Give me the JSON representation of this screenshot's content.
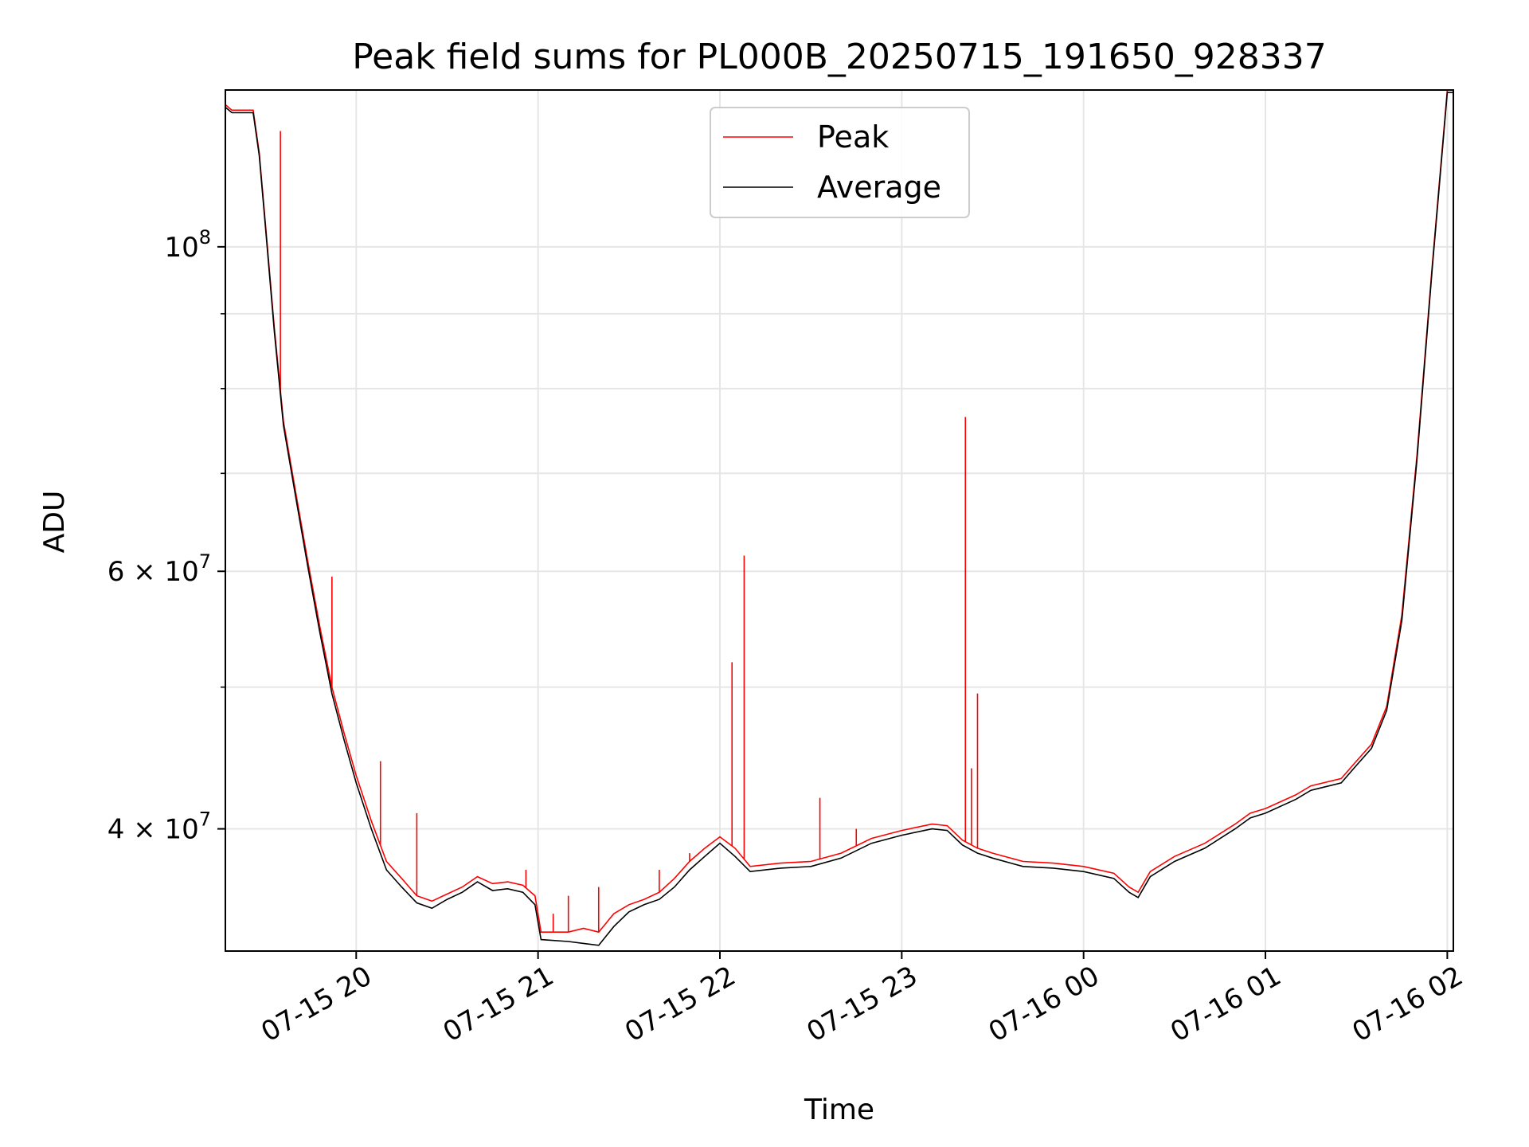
{
  "chart_data": {
    "type": "line",
    "title": "Peak field sums for PL000B_20250715_191650_928337",
    "xlabel": "Time",
    "ylabel": "ADU",
    "yscale": "log",
    "grid": true,
    "legend_position": "top-center",
    "xlim": [
      "2025-07-15 19:16:50",
      "2025-07-16 02:02:00"
    ],
    "ylim": [
      33000000,
      128000000
    ],
    "x_ticks": [
      {
        "t": "2025-07-15 20:00",
        "label": "07-15 20"
      },
      {
        "t": "2025-07-15 21:00",
        "label": "07-15 21"
      },
      {
        "t": "2025-07-15 22:00",
        "label": "07-15 22"
      },
      {
        "t": "2025-07-15 23:00",
        "label": "07-15 23"
      },
      {
        "t": "2025-07-16 00:00",
        "label": "07-16 00"
      },
      {
        "t": "2025-07-16 01:00",
        "label": "07-16 01"
      },
      {
        "t": "2025-07-16 02:00",
        "label": "07-16 02"
      }
    ],
    "y_ticks_major": [
      {
        "v": 40000000,
        "label": "4 × 10",
        "exp": "7"
      },
      {
        "v": 60000000,
        "label": "6 × 10",
        "exp": "7"
      },
      {
        "v": 100000000,
        "label": "10",
        "exp": "8"
      }
    ],
    "y_ticks_minor": [
      30000000,
      50000000,
      70000000,
      80000000,
      90000000
    ],
    "series": [
      {
        "name": "Peak",
        "color": "#ff0000",
        "x": [
          "2025-07-15 19:17",
          "2025-07-15 19:19",
          "2025-07-15 19:22",
          "2025-07-15 19:26",
          "2025-07-15 19:28",
          "2025-07-15 19:30",
          "2025-07-15 19:33",
          "2025-07-15 19:36",
          "2025-07-15 19:40",
          "2025-07-15 19:44",
          "2025-07-15 19:48",
          "2025-07-15 19:52",
          "2025-07-15 19:56",
          "2025-07-15 20:00",
          "2025-07-15 20:05",
          "2025-07-15 20:10",
          "2025-07-15 20:15",
          "2025-07-15 20:20",
          "2025-07-15 20:25",
          "2025-07-15 20:30",
          "2025-07-15 20:35",
          "2025-07-15 20:40",
          "2025-07-15 20:45",
          "2025-07-15 20:50",
          "2025-07-15 20:55",
          "2025-07-15 20:59",
          "2025-07-15 21:01",
          "2025-07-15 21:10",
          "2025-07-15 21:15",
          "2025-07-15 21:20",
          "2025-07-15 21:25",
          "2025-07-15 21:30",
          "2025-07-15 21:35",
          "2025-07-15 21:40",
          "2025-07-15 21:45",
          "2025-07-15 21:50",
          "2025-07-15 21:55",
          "2025-07-15 22:00",
          "2025-07-15 22:05",
          "2025-07-15 22:10",
          "2025-07-15 22:20",
          "2025-07-15 22:30",
          "2025-07-15 22:40",
          "2025-07-15 22:50",
          "2025-07-15 23:00",
          "2025-07-15 23:10",
          "2025-07-15 23:15",
          "2025-07-15 23:20",
          "2025-07-15 23:25",
          "2025-07-15 23:30",
          "2025-07-15 23:40",
          "2025-07-15 23:50",
          "2025-07-16 00:00",
          "2025-07-16 00:10",
          "2025-07-16 00:15",
          "2025-07-16 00:18",
          "2025-07-16 00:22",
          "2025-07-16 00:30",
          "2025-07-16 00:40",
          "2025-07-16 00:50",
          "2025-07-16 00:55",
          "2025-07-16 01:00",
          "2025-07-16 01:10",
          "2025-07-16 01:15",
          "2025-07-16 01:25",
          "2025-07-16 01:30",
          "2025-07-16 01:35",
          "2025-07-16 01:40",
          "2025-07-16 01:45",
          "2025-07-16 01:50",
          "2025-07-16 01:55",
          "2025-07-16 02:00",
          "2025-07-16 02:02"
        ],
        "y": [
          125000000,
          124000000,
          124000000,
          124000000,
          116000000,
          104000000,
          88000000,
          76000000,
          68000000,
          61000000,
          55000000,
          50000000,
          46500000,
          43500000,
          40500000,
          38000000,
          37000000,
          36000000,
          35700000,
          36100000,
          36500000,
          37100000,
          36700000,
          36800000,
          36600000,
          36000000,
          34000000,
          34000000,
          34200000,
          34000000,
          35000000,
          35500000,
          35800000,
          36200000,
          37000000,
          38000000,
          38800000,
          39500000,
          38800000,
          37700000,
          37900000,
          38000000,
          38500000,
          39400000,
          39900000,
          40300000,
          40200000,
          39300000,
          38800000,
          38500000,
          38000000,
          37900000,
          37700000,
          37300000,
          36500000,
          36200000,
          37400000,
          38300000,
          39100000,
          40300000,
          41000000,
          41300000,
          42200000,
          42800000,
          43300000,
          44500000,
          45700000,
          48500000,
          56000000,
          72000000,
          97000000,
          128000000,
          128000000
        ],
        "spikes": [
          {
            "x": "2025-07-15 19:35",
            "y": 120000000
          },
          {
            "x": "2025-07-15 19:52",
            "y": 59500000
          },
          {
            "x": "2025-07-15 20:08",
            "y": 44500000
          },
          {
            "x": "2025-07-15 20:20",
            "y": 41000000
          },
          {
            "x": "2025-07-15 20:56",
            "y": 37500000
          },
          {
            "x": "2025-07-15 21:05",
            "y": 35000000
          },
          {
            "x": "2025-07-15 21:10",
            "y": 36000000
          },
          {
            "x": "2025-07-15 21:20",
            "y": 36500000
          },
          {
            "x": "2025-07-15 21:40",
            "y": 37500000
          },
          {
            "x": "2025-07-15 21:50",
            "y": 38500000
          },
          {
            "x": "2025-07-15 22:04",
            "y": 52000000
          },
          {
            "x": "2025-07-15 22:08",
            "y": 61500000
          },
          {
            "x": "2025-07-15 22:33",
            "y": 42000000
          },
          {
            "x": "2025-07-15 22:45",
            "y": 40000000
          },
          {
            "x": "2025-07-15 23:21",
            "y": 76500000
          },
          {
            "x": "2025-07-15 23:23",
            "y": 44000000
          },
          {
            "x": "2025-07-15 23:25",
            "y": 49500000
          }
        ]
      },
      {
        "name": "Average",
        "color": "#000000",
        "x": [
          "2025-07-15 19:17",
          "2025-07-15 19:19",
          "2025-07-15 19:22",
          "2025-07-15 19:26",
          "2025-07-15 19:28",
          "2025-07-15 19:30",
          "2025-07-15 19:33",
          "2025-07-15 19:36",
          "2025-07-15 19:40",
          "2025-07-15 19:44",
          "2025-07-15 19:48",
          "2025-07-15 19:52",
          "2025-07-15 19:56",
          "2025-07-15 20:00",
          "2025-07-15 20:05",
          "2025-07-15 20:10",
          "2025-07-15 20:15",
          "2025-07-15 20:20",
          "2025-07-15 20:25",
          "2025-07-15 20:30",
          "2025-07-15 20:35",
          "2025-07-15 20:40",
          "2025-07-15 20:45",
          "2025-07-15 20:50",
          "2025-07-15 20:55",
          "2025-07-15 20:59",
          "2025-07-15 21:01",
          "2025-07-15 21:10",
          "2025-07-15 21:15",
          "2025-07-15 21:20",
          "2025-07-15 21:25",
          "2025-07-15 21:30",
          "2025-07-15 21:35",
          "2025-07-15 21:40",
          "2025-07-15 21:45",
          "2025-07-15 21:50",
          "2025-07-15 21:55",
          "2025-07-15 22:00",
          "2025-07-15 22:05",
          "2025-07-15 22:10",
          "2025-07-15 22:20",
          "2025-07-15 22:30",
          "2025-07-15 22:40",
          "2025-07-15 22:50",
          "2025-07-15 23:00",
          "2025-07-15 23:10",
          "2025-07-15 23:15",
          "2025-07-15 23:20",
          "2025-07-15 23:25",
          "2025-07-15 23:30",
          "2025-07-15 23:40",
          "2025-07-15 23:50",
          "2025-07-16 00:00",
          "2025-07-16 00:10",
          "2025-07-16 00:15",
          "2025-07-16 00:18",
          "2025-07-16 00:22",
          "2025-07-16 00:30",
          "2025-07-16 00:40",
          "2025-07-16 00:50",
          "2025-07-16 00:55",
          "2025-07-16 01:00",
          "2025-07-16 01:10",
          "2025-07-16 01:15",
          "2025-07-16 01:25",
          "2025-07-16 01:30",
          "2025-07-16 01:35",
          "2025-07-16 01:40",
          "2025-07-16 01:45",
          "2025-07-16 01:50",
          "2025-07-16 01:55",
          "2025-07-16 02:00",
          "2025-07-16 02:02"
        ],
        "y": [
          124500000,
          123500000,
          123500000,
          123500000,
          115500000,
          103500000,
          87500000,
          75500000,
          67500000,
          60500000,
          54500000,
          49500000,
          46000000,
          43000000,
          40000000,
          37500000,
          36500000,
          35600000,
          35300000,
          35800000,
          36200000,
          36800000,
          36300000,
          36400000,
          36200000,
          35500000,
          33600000,
          33500000,
          33400000,
          33300000,
          34300000,
          35100000,
          35500000,
          35800000,
          36500000,
          37500000,
          38300000,
          39100000,
          38300000,
          37400000,
          37600000,
          37700000,
          38200000,
          39100000,
          39600000,
          40000000,
          39900000,
          39000000,
          38500000,
          38200000,
          37700000,
          37600000,
          37400000,
          37000000,
          36200000,
          35900000,
          37100000,
          38000000,
          38800000,
          40000000,
          40700000,
          41000000,
          41900000,
          42500000,
          43000000,
          44200000,
          45400000,
          48200000,
          55500000,
          71500000,
          96500000,
          127500000,
          127500000
        ]
      }
    ]
  }
}
